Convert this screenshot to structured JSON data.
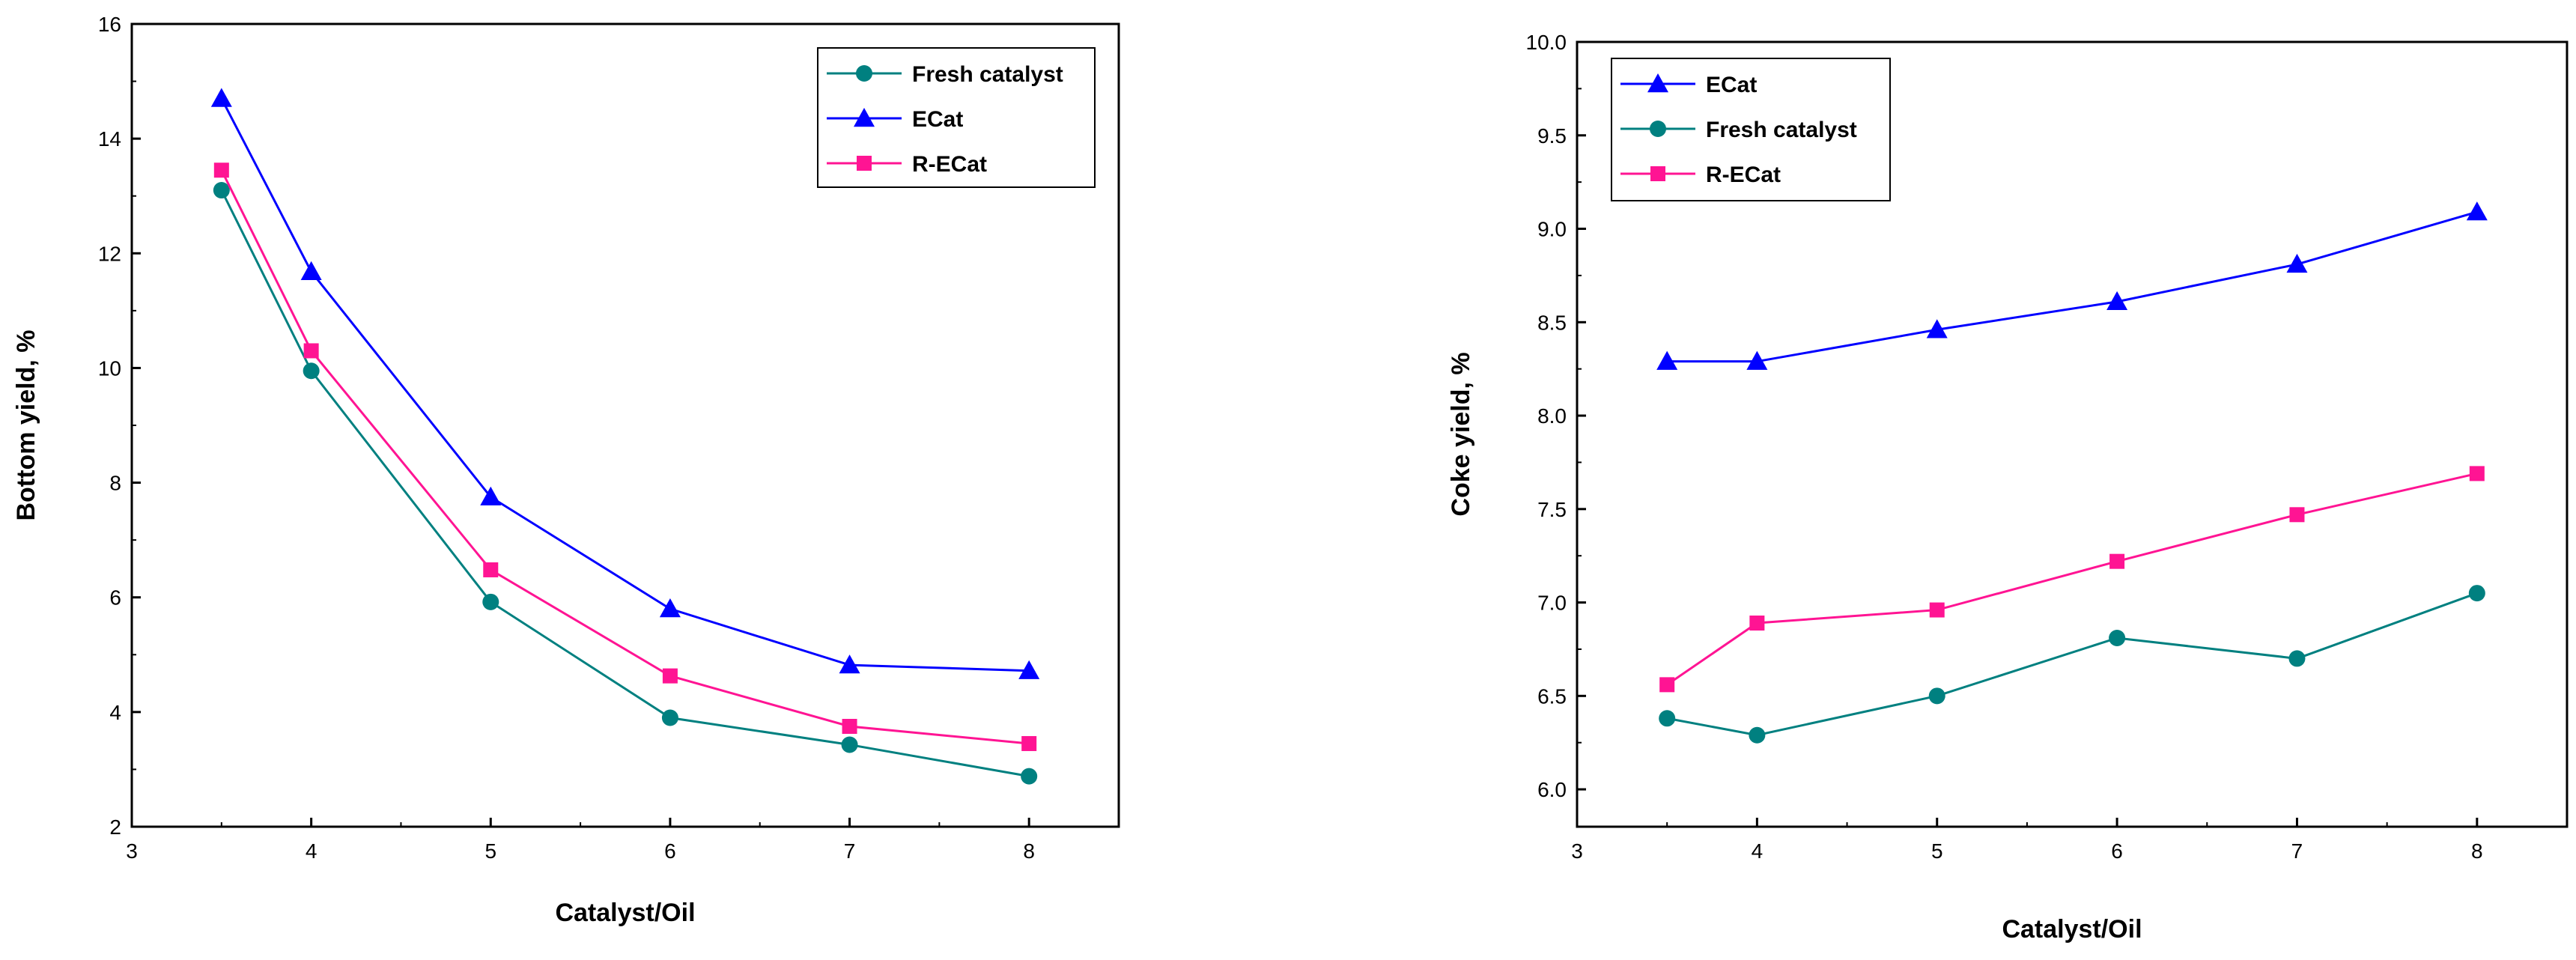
{
  "chart_data": [
    {
      "type": "line",
      "title": "",
      "xlabel": "Catalyst/Oil",
      "ylabel": "Bottom yield, %",
      "xlim": [
        3,
        8.5
      ],
      "ylim": [
        2,
        16
      ],
      "xticks": [
        "3",
        "4",
        "5",
        "6",
        "7",
        "8"
      ],
      "yticks": [
        "2",
        "4",
        "6",
        "8",
        "10",
        "12",
        "14",
        "16"
      ],
      "grid": false,
      "legend_position": "top-right",
      "x": [
        3.5,
        4,
        5,
        6,
        7,
        8
      ],
      "series": [
        {
          "name": "Fresh catalyst",
          "marker": "circle",
          "color": "#008080",
          "values": [
            13.1,
            9.95,
            5.92,
            3.9,
            3.43,
            2.88
          ]
        },
        {
          "name": "ECat",
          "marker": "triangle",
          "color": "#0000ff",
          "values": [
            14.7,
            11.68,
            7.75,
            5.8,
            4.82,
            4.72
          ]
        },
        {
          "name": "R-ECat",
          "marker": "square",
          "color": "#ff1493",
          "values": [
            13.45,
            10.3,
            6.48,
            4.63,
            3.75,
            3.45
          ]
        }
      ]
    },
    {
      "type": "line",
      "title": "",
      "xlabel": "Catalyst/Oil",
      "ylabel": "Coke yield, %",
      "xlim": [
        3,
        8.5
      ],
      "ylim": [
        5.8,
        10.0
      ],
      "xticks": [
        "3",
        "4",
        "5",
        "6",
        "7",
        "8"
      ],
      "yticks": [
        "6.0",
        "6.5",
        "7.0",
        "7.5",
        "8.0",
        "8.5",
        "9.0",
        "9.5",
        "10.0"
      ],
      "grid": false,
      "legend_position": "top-left",
      "x": [
        3.5,
        4,
        5,
        6,
        7,
        8
      ],
      "series": [
        {
          "name": "ECat",
          "marker": "triangle",
          "color": "#0000ff",
          "values": [
            8.29,
            8.29,
            8.46,
            8.61,
            8.81,
            9.09
          ]
        },
        {
          "name": "Fresh catalyst",
          "marker": "circle",
          "color": "#008080",
          "values": [
            6.38,
            6.29,
            6.5,
            6.81,
            6.7,
            7.05
          ]
        },
        {
          "name": "R-ECat",
          "marker": "square",
          "color": "#ff1493",
          "values": [
            6.56,
            6.89,
            6.96,
            7.22,
            7.47,
            7.69
          ]
        }
      ]
    }
  ]
}
